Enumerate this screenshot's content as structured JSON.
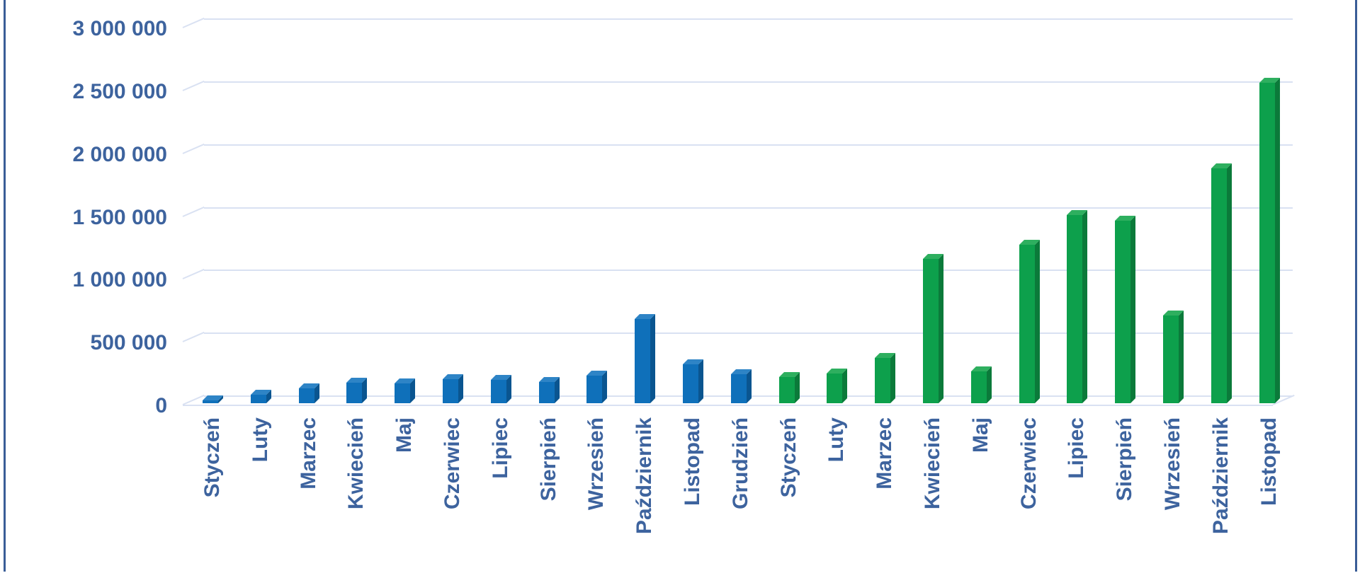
{
  "chart_data": {
    "type": "bar",
    "style": "3d-column",
    "title": "",
    "xlabel": "",
    "ylabel": "",
    "ylim": [
      0,
      3000000
    ],
    "grid": true,
    "legend": false,
    "y_ticks": [
      {
        "value": 0,
        "label": "0"
      },
      {
        "value": 500000,
        "label": "500 000"
      },
      {
        "value": 1000000,
        "label": "1 000 000"
      },
      {
        "value": 1500000,
        "label": "1 500 000"
      },
      {
        "value": 2000000,
        "label": "2 000 000"
      },
      {
        "value": 2500000,
        "label": "2 500 000"
      },
      {
        "value": 3000000,
        "label": "3 000 000"
      }
    ],
    "series": [
      {
        "name": "year-1-blue",
        "color": "#0f70ba",
        "color_side": "#0a5590",
        "color_top": "#2e84c6",
        "points": [
          {
            "label": "Styczeń",
            "value": 25000
          },
          {
            "label": "Luty",
            "value": 70000
          },
          {
            "label": "Marzec",
            "value": 120000
          },
          {
            "label": "Kwiecień",
            "value": 165000
          },
          {
            "label": "Maj",
            "value": 160000
          },
          {
            "label": "Czerwiec",
            "value": 190000
          },
          {
            "label": "Lipiec",
            "value": 185000
          },
          {
            "label": "Sierpień",
            "value": 170000
          },
          {
            "label": "Wrzesień",
            "value": 220000
          },
          {
            "label": "Październik",
            "value": 670000
          },
          {
            "label": "Listopad",
            "value": 310000
          },
          {
            "label": "Grudzień",
            "value": 230000
          }
        ]
      },
      {
        "name": "year-2-green",
        "color": "#0da04c",
        "color_side": "#0b7a3a",
        "color_top": "#2eaf5f",
        "points": [
          {
            "label": "Styczeń",
            "value": 210000
          },
          {
            "label": "Luty",
            "value": 235000
          },
          {
            "label": "Marzec",
            "value": 360000
          },
          {
            "label": "Kwiecień",
            "value": 1150000
          },
          {
            "label": "Maj",
            "value": 255000
          },
          {
            "label": "Czerwiec",
            "value": 1260000
          },
          {
            "label": "Lipiec",
            "value": 1500000
          },
          {
            "label": "Sierpień",
            "value": 1450000
          },
          {
            "label": "Wrzesień",
            "value": 700000
          },
          {
            "label": "Październik",
            "value": 1870000
          },
          {
            "label": "Listopad",
            "value": 2550000
          }
        ]
      }
    ]
  },
  "colors": {
    "background": "#ffffff",
    "axis_text": "#3d639e",
    "gridline": "#d9e1f2",
    "frame_border": "#3a5d97"
  }
}
